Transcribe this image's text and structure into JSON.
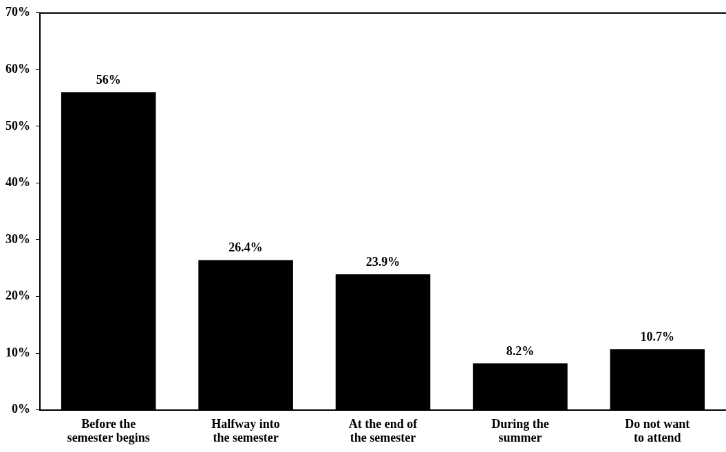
{
  "chart_data": {
    "type": "bar",
    "categories": [
      "Before the\nsemester begins",
      "Halfway into\nthe semester",
      "At the end of\nthe semester",
      "During the\nsummer",
      "Do not want\nto attend"
    ],
    "values": [
      56,
      26.4,
      23.9,
      8.2,
      10.7
    ],
    "value_labels": [
      "56%",
      "26.4%",
      "23.9%",
      "8.2%",
      "10.7%"
    ],
    "color": "#000000",
    "ylim": [
      0,
      70
    ],
    "yticks": [
      {
        "value": 0,
        "label": "0%"
      },
      {
        "value": 10,
        "label": "10%"
      },
      {
        "value": 20,
        "label": "20%"
      },
      {
        "value": 30,
        "label": "30%"
      },
      {
        "value": 40,
        "label": "40%"
      },
      {
        "value": 50,
        "label": "50%"
      },
      {
        "value": 60,
        "label": "60%"
      },
      {
        "value": 70,
        "label": "70%"
      }
    ],
    "grid": false,
    "legend": false
  }
}
